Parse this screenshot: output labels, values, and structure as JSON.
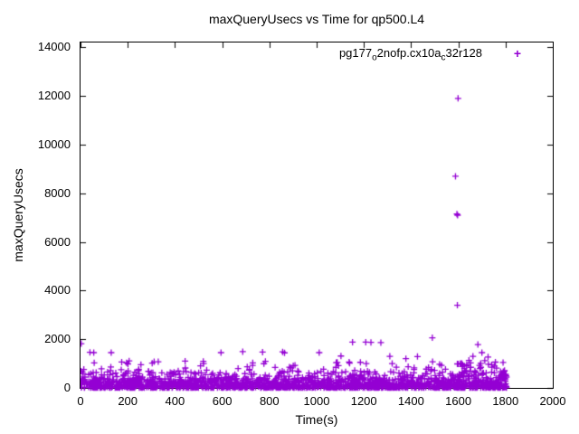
{
  "chart_data": {
    "type": "scatter",
    "title": "maxQueryUsecs vs Time for qp500.L4",
    "xlabel": "Time(s)",
    "ylabel": "maxQueryUsecs",
    "xlim": [
      0,
      2000
    ],
    "ylim": [
      0,
      14200
    ],
    "xtick_values": [
      0,
      200,
      400,
      600,
      800,
      1000,
      1200,
      1400,
      1600,
      1800,
      2000
    ],
    "ytick_values": [
      0,
      2000,
      4000,
      6000,
      8000,
      10000,
      12000,
      14000
    ],
    "grid": false,
    "axis_color": "#000000",
    "marker": {
      "shape": "plus",
      "color": "#9400D3",
      "size": 7
    },
    "legend": {
      "position": "top-right",
      "marker_glyph": "+",
      "label_plain": "pg177_o2nofp.cx10a_c32r128",
      "label_segments": [
        {
          "text": "pg177"
        },
        {
          "text": "o",
          "sub": true
        },
        {
          "text": "2nofp.cx10a"
        },
        {
          "text": "c",
          "sub": true
        },
        {
          "text": "32r128"
        }
      ]
    },
    "series": [
      {
        "name": "pg177_o2nofp.cx10a_c32r128",
        "outlier_points": [
          [
            3,
            1820
          ],
          [
            14,
            760
          ],
          [
            40,
            1460
          ],
          [
            56,
            1450
          ],
          [
            130,
            1450
          ],
          [
            206,
            1110
          ],
          [
            443,
            1100
          ],
          [
            520,
            1090
          ],
          [
            595,
            1450
          ],
          [
            687,
            1490
          ],
          [
            771,
            1470
          ],
          [
            783,
            1090
          ],
          [
            856,
            1480
          ],
          [
            864,
            1440
          ],
          [
            1011,
            1450
          ],
          [
            1103,
            1310
          ],
          [
            1152,
            1880
          ],
          [
            1208,
            1880
          ],
          [
            1230,
            1870
          ],
          [
            1272,
            1860
          ],
          [
            1310,
            1300
          ],
          [
            1378,
            1200
          ],
          [
            1427,
            1290
          ],
          [
            1490,
            2060
          ],
          [
            1588,
            8700
          ],
          [
            1594,
            7150
          ],
          [
            1597,
            7100
          ],
          [
            1596,
            3400
          ],
          [
            1599,
            11900
          ],
          [
            1615,
            1000
          ],
          [
            1645,
            1130
          ],
          [
            1662,
            1300
          ],
          [
            1683,
            1780
          ],
          [
            1700,
            1450
          ],
          [
            1712,
            1120
          ],
          [
            1726,
            1270
          ],
          [
            1741,
            950
          ],
          [
            1757,
            1060
          ],
          [
            1795,
            680
          ],
          [
            1800,
            560
          ]
        ],
        "band_synthesis": {
          "seed": 42,
          "bands": [
            {
              "count": 1500,
              "t_range": [
                0,
                1806
              ],
              "v_range": [
                5,
                380
              ],
              "pow": 2.0
            },
            {
              "count": 230,
              "t_range": [
                0,
                1806
              ],
              "v_range": [
                380,
                700
              ],
              "pow": 1.4
            },
            {
              "count": 60,
              "t_range": [
                0,
                1806
              ],
              "v_range": [
                700,
                1080
              ],
              "pow": 1.2
            },
            {
              "count": 26,
              "t_range": [
                1598,
                1762
              ],
              "v_range": [
                450,
                1020
              ],
              "pow": 1.1
            },
            {
              "count": 13,
              "t_range": [
                1772,
                1806
              ],
              "v_range": [
                350,
                720
              ],
              "pow": 1.0
            }
          ]
        }
      }
    ]
  }
}
